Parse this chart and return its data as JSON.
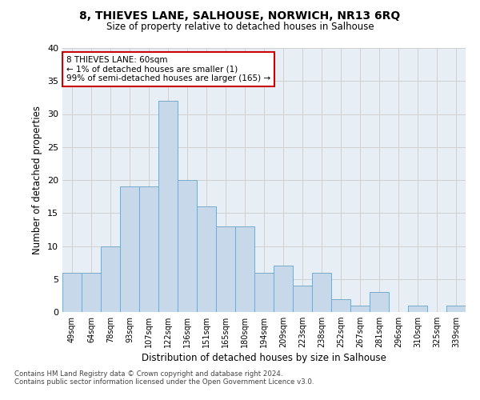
{
  "title1": "8, THIEVES LANE, SALHOUSE, NORWICH, NR13 6RQ",
  "title2": "Size of property relative to detached houses in Salhouse",
  "xlabel": "Distribution of detached houses by size in Salhouse",
  "ylabel": "Number of detached properties",
  "bin_values": [
    6,
    6,
    10,
    19,
    19,
    32,
    20,
    16,
    13,
    13,
    6,
    7,
    4,
    6,
    2,
    1,
    3,
    0,
    1,
    0,
    1
  ],
  "bin_labels": [
    "49sqm",
    "64sqm",
    "78sqm",
    "93sqm",
    "107sqm",
    "122sqm",
    "136sqm",
    "151sqm",
    "165sqm",
    "180sqm",
    "194sqm",
    "209sqm",
    "223sqm",
    "238sqm",
    "252sqm",
    "267sqm",
    "281sqm",
    "296sqm",
    "310sqm",
    "325sqm",
    "339sqm"
  ],
  "bar_color": "#c8d8eb",
  "bar_edge_color": "#7aaac8",
  "grid_color": "#cccccc",
  "background_color": "#e8eef5",
  "ann_box_color": "#cc0000",
  "annotation_text": "8 THIEVES LANE: 60sqm\n← 1% of detached houses are smaller (1)\n99% of semi-detached houses are larger (165) →",
  "footer1": "Contains HM Land Registry data © Crown copyright and database right 2024.",
  "footer2": "Contains public sector information licensed under the Open Government Licence v3.0.",
  "ylim": [
    0,
    40
  ],
  "yticks": [
    0,
    5,
    10,
    15,
    20,
    25,
    30,
    35,
    40
  ]
}
